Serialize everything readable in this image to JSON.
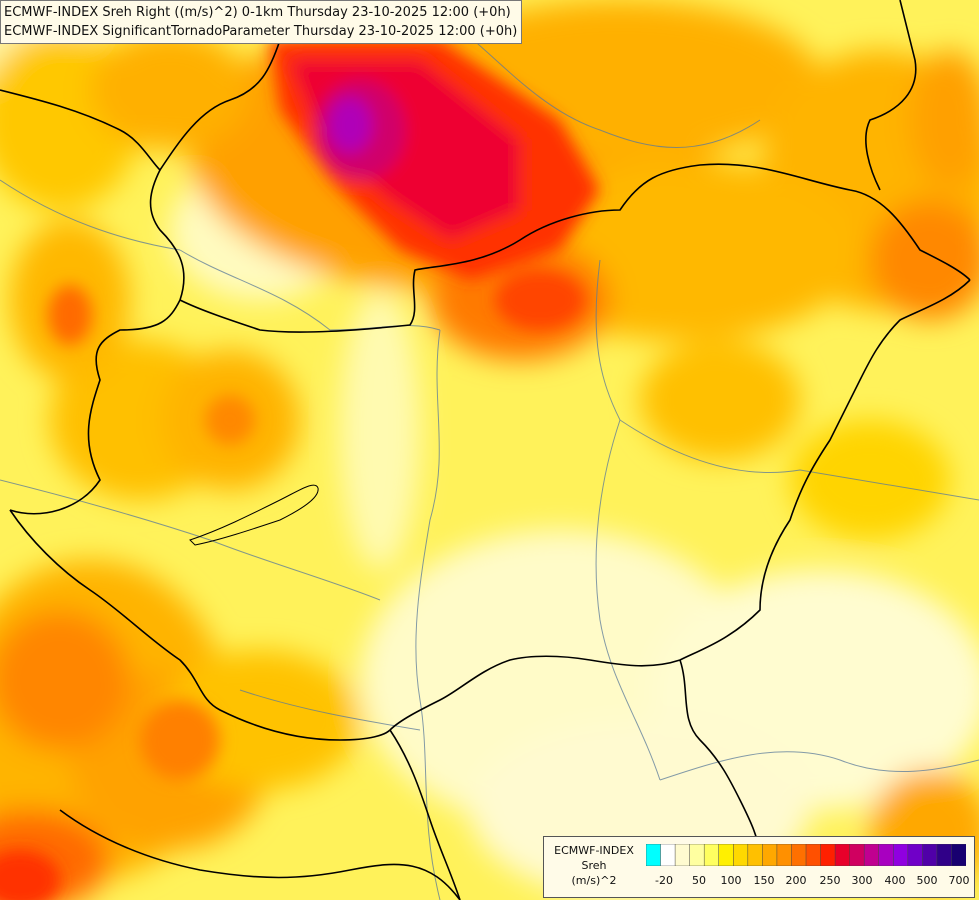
{
  "titles": {
    "line1": "ECMWF-INDEX Sreh Right ((m/s)^2) 0-1km Thursday 23-10-2025 12:00 (+0h)",
    "line2": "ECMWF-INDEX SignificantTornadoParameter Thursday 23-10-2025 12:00 (+0h)"
  },
  "legend": {
    "title_line1": "ECMWF-INDEX",
    "title_line2": "Sreh",
    "title_line3": "(m/s)^2",
    "colors": [
      "#00ffff",
      "#ffffff",
      "#fffbd0",
      "#ffffa0",
      "#ffff60",
      "#fff000",
      "#ffd800",
      "#ffc000",
      "#ffa800",
      "#ff9000",
      "#ff7000",
      "#ff5000",
      "#ff2000",
      "#e8002a",
      "#d00060",
      "#c00090",
      "#a800c0",
      "#9000e0",
      "#7000c8",
      "#5000a8",
      "#300088",
      "#180070"
    ],
    "ticks": [
      "-20",
      "50",
      "100",
      "150",
      "200",
      "250",
      "300",
      "400",
      "500",
      "700"
    ]
  }
}
